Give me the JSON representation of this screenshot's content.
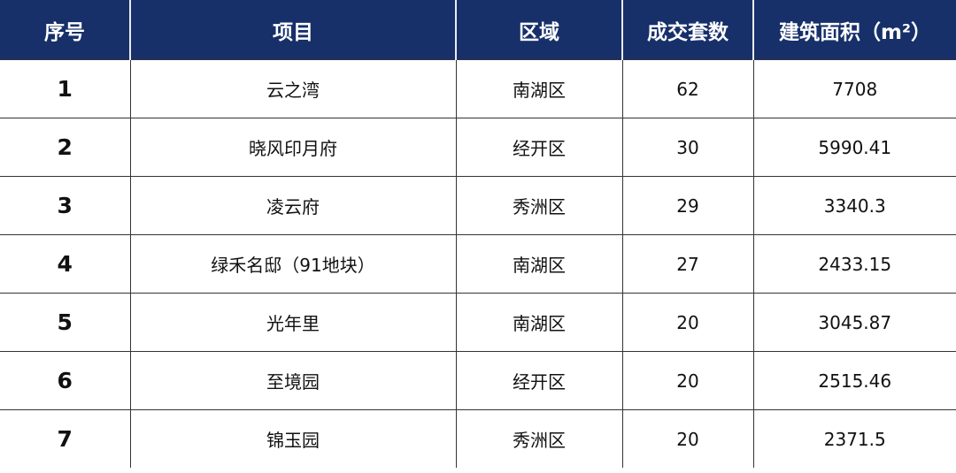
{
  "header_color": "#17306a",
  "columns": [
    "序号",
    "项目",
    "区域",
    "成交套数",
    "建筑面积（m²）"
  ],
  "rows": [
    [
      "1",
      "云之湾",
      "南湖区",
      "62",
      "7708"
    ],
    [
      "2",
      "晓风印月府",
      "经开区",
      "30",
      "5990.41"
    ],
    [
      "3",
      "凌云府",
      "秀洲区",
      "29",
      "3340.3"
    ],
    [
      "4",
      "绿禾名邸（91地块）",
      "南湖区",
      "27",
      "2433.15"
    ],
    [
      "5",
      "光年里",
      "南湖区",
      "20",
      "3045.87"
    ],
    [
      "6",
      "至境园",
      "经开区",
      "20",
      "2515.46"
    ],
    [
      "7",
      "锦玉园",
      "秀洲区",
      "20",
      "2371.5"
    ]
  ],
  "chart_data": {
    "type": "table",
    "columns": [
      "序号",
      "项目",
      "区域",
      "成交套数",
      "建筑面积（m²）"
    ],
    "rows": [
      [
        "1",
        "云之湾",
        "南湖区",
        62,
        7708
      ],
      [
        "2",
        "晓风印月府",
        "经开区",
        30,
        5990.41
      ],
      [
        "3",
        "凌云府",
        "秀洲区",
        29,
        3340.3
      ],
      [
        "4",
        "绿禾名邸（91地块）",
        "南湖区",
        27,
        2433.15
      ],
      [
        "5",
        "光年里",
        "南湖区",
        20,
        3045.87
      ],
      [
        "6",
        "至境园",
        "经开区",
        20,
        2515.46
      ],
      [
        "7",
        "锦玉园",
        "秀洲区",
        20,
        2371.5
      ]
    ]
  }
}
